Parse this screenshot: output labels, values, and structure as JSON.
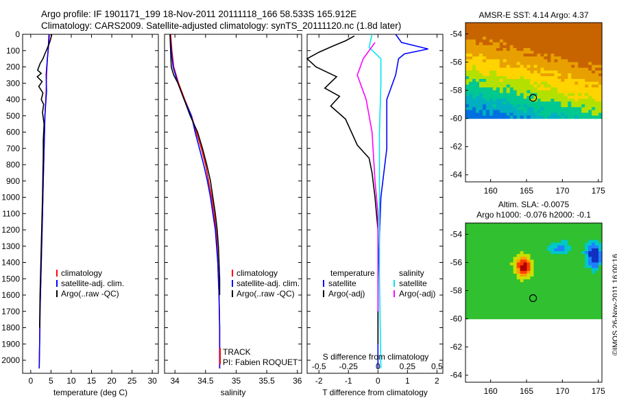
{
  "header": {
    "line1": "Argo profile: IF 1901171_199 18-Nov-2011 20111118_166 58.533S 165.912E",
    "line2": "Climatology: CARS2009. Satellite-adjusted climatology: synTS_20111120.nc (1.8d later)"
  },
  "colors": {
    "climatology": "#ff0000",
    "satellite": "#0000ff",
    "argo": "#000000",
    "cyan": "#00e5ee",
    "magenta": "#ff00ff"
  },
  "chart_data": [
    {
      "type": "line",
      "id": "temperature",
      "xlabel": "temperature (deg C)",
      "ylabel": "",
      "xlim": [
        -2,
        31.5
      ],
      "ylim": [
        2080,
        0
      ],
      "xticks": [
        0,
        5,
        10,
        15,
        20,
        25,
        30
      ],
      "yticks": [
        0,
        100,
        200,
        300,
        400,
        500,
        600,
        700,
        800,
        900,
        1000,
        1100,
        1200,
        1300,
        1400,
        1500,
        1600,
        1700,
        1800,
        1900,
        2000
      ],
      "legend": [
        "climatology",
        "satellite-adj. clim.",
        "Argo(..raw -QC)"
      ],
      "series": [
        {
          "name": "climatology",
          "color": "#ff0000",
          "points": [
            [
              4.6,
              0
            ],
            [
              4.5,
              50
            ],
            [
              4.3,
              100
            ],
            [
              4.1,
              150
            ],
            [
              3.9,
              250
            ],
            [
              3.8,
              350
            ],
            [
              3.5,
              500
            ],
            [
              3.3,
              700
            ],
            [
              3.1,
              900
            ],
            [
              2.9,
              1100
            ],
            [
              2.7,
              1300
            ],
            [
              2.5,
              1500
            ],
            [
              2.3,
              1700
            ],
            [
              2.2,
              1900
            ],
            [
              2.1,
              2050
            ]
          ]
        },
        {
          "name": "satellite-adj. clim.",
          "color": "#0000ff",
          "points": [
            [
              4.5,
              0
            ],
            [
              4.4,
              50
            ],
            [
              4.3,
              100
            ],
            [
              4.1,
              150
            ],
            [
              3.8,
              250
            ],
            [
              3.9,
              350
            ],
            [
              3.5,
              500
            ],
            [
              3.3,
              700
            ],
            [
              3.1,
              900
            ],
            [
              2.9,
              1100
            ],
            [
              2.7,
              1300
            ],
            [
              2.5,
              1500
            ],
            [
              2.3,
              1700
            ],
            [
              2.2,
              1900
            ],
            [
              2.1,
              2050
            ]
          ]
        },
        {
          "name": "Argo(..raw -QC)",
          "color": "#000000",
          "points": [
            [
              5.2,
              0
            ],
            [
              5.0,
              20
            ],
            [
              4.8,
              40
            ],
            [
              4.5,
              60
            ],
            [
              4.0,
              90
            ],
            [
              3.5,
              120
            ],
            [
              3.0,
              150
            ],
            [
              2.3,
              180
            ],
            [
              1.7,
              220
            ],
            [
              2.6,
              240
            ],
            [
              1.6,
              260
            ],
            [
              2.8,
              290
            ],
            [
              2.0,
              320
            ],
            [
              3.0,
              360
            ],
            [
              2.6,
              400
            ],
            [
              3.2,
              430
            ],
            [
              2.9,
              480
            ],
            [
              3.3,
              550
            ],
            [
              3.1,
              650
            ],
            [
              3.1,
              750
            ],
            [
              3.0,
              850
            ],
            [
              2.9,
              1000
            ],
            [
              2.7,
              1200
            ],
            [
              2.5,
              1400
            ],
            [
              2.3,
              1600
            ],
            [
              2.2,
              1800
            ]
          ]
        }
      ]
    },
    {
      "type": "line",
      "id": "salinity",
      "xlabel": "salinity",
      "ylabel": "",
      "xlim": [
        33.83,
        36.07
      ],
      "ylim": [
        2080,
        0
      ],
      "xticks": [
        34,
        34.5,
        35,
        35.5,
        36
      ],
      "legend": [
        "climatology",
        "satellite-adj. clim.",
        "Argo(..raw -QC)"
      ],
      "series": [
        {
          "name": "climatology",
          "color": "#ff0000",
          "points": [
            [
              33.93,
              0
            ],
            [
              33.94,
              50
            ],
            [
              33.95,
              100
            ],
            [
              33.98,
              200
            ],
            [
              34.06,
              300
            ],
            [
              34.16,
              400
            ],
            [
              34.27,
              500
            ],
            [
              34.35,
              600
            ],
            [
              34.43,
              700
            ],
            [
              34.5,
              800
            ],
            [
              34.55,
              900
            ],
            [
              34.6,
              1000
            ],
            [
              34.64,
              1100
            ],
            [
              34.67,
              1200
            ],
            [
              34.69,
              1300
            ],
            [
              34.7,
              1400
            ],
            [
              34.71,
              1500
            ],
            [
              34.72,
              1600
            ],
            [
              34.73,
              1800
            ],
            [
              34.73,
              2050
            ]
          ]
        },
        {
          "name": "satellite-adj. clim.",
          "color": "#0000ff",
          "points": [
            [
              33.92,
              0
            ],
            [
              33.93,
              50
            ],
            [
              33.94,
              100
            ],
            [
              33.97,
              200
            ],
            [
              34.05,
              300
            ],
            [
              34.15,
              400
            ],
            [
              34.27,
              500
            ],
            [
              34.33,
              600
            ],
            [
              34.4,
              700
            ],
            [
              34.47,
              800
            ],
            [
              34.53,
              900
            ],
            [
              34.58,
              1000
            ],
            [
              34.62,
              1100
            ],
            [
              34.66,
              1200
            ],
            [
              34.68,
              1300
            ],
            [
              34.7,
              1400
            ],
            [
              34.71,
              1500
            ],
            [
              34.72,
              1600
            ],
            [
              34.73,
              1800
            ],
            [
              34.73,
              2050
            ]
          ]
        },
        {
          "name": "Argo(..raw -QC)",
          "color": "#000000",
          "points": [
            [
              33.92,
              0
            ],
            [
              33.93,
              100
            ],
            [
              33.94,
              200
            ],
            [
              33.98,
              250
            ],
            [
              34.05,
              300
            ],
            [
              34.15,
              400
            ],
            [
              34.25,
              500
            ],
            [
              34.37,
              600
            ],
            [
              34.45,
              700
            ],
            [
              34.52,
              800
            ],
            [
              34.58,
              900
            ],
            [
              34.62,
              1000
            ],
            [
              34.66,
              1100
            ],
            [
              34.69,
              1200
            ],
            [
              34.71,
              1300
            ],
            [
              34.72,
              1400
            ],
            [
              34.73,
              1500
            ],
            [
              34.73,
              1600
            ]
          ]
        }
      ],
      "annotation": [
        "TRACK",
        "PI: Fabien ROQUET"
      ]
    },
    {
      "type": "line",
      "id": "differences",
      "xlabel": "T difference from climatology",
      "xlabel_top": "S difference from climatology",
      "xlim": [
        -2.4,
        2.2
      ],
      "ylim": [
        2080,
        0
      ],
      "xticks": [
        -2,
        -1,
        0,
        1,
        2
      ],
      "top_ticks": [
        {
          "label": "-0.5",
          "t": -2
        },
        {
          "label": "-0.25",
          "t": -1
        },
        {
          "label": "0",
          "t": 0
        },
        {
          "label": "0.25",
          "t": 1
        },
        {
          "label": "0.5",
          "t": 2
        }
      ],
      "legend_left": {
        "title": "temperature",
        "items": [
          "satellite",
          "Argo(-adj)"
        ]
      },
      "legend_right": {
        "title": "salinity",
        "items": [
          "satellite",
          "Argo(-adj)"
        ]
      },
      "series": [
        {
          "name": "T satellite",
          "color": "#0000ff",
          "points": [
            [
              0.6,
              0
            ],
            [
              0.8,
              50
            ],
            [
              1.7,
              90
            ],
            [
              0.9,
              120
            ],
            [
              0.7,
              150
            ],
            [
              0.6,
              250
            ],
            [
              0.3,
              400
            ],
            [
              0.3,
              700
            ],
            [
              0.1,
              1000
            ],
            [
              0,
              1500
            ],
            [
              0,
              2050
            ]
          ]
        },
        {
          "name": "T Argo(-adj)",
          "color": "#000000",
          "points": [
            [
              -0.8,
              10
            ],
            [
              -1.1,
              40
            ],
            [
              -1.5,
              70
            ],
            [
              -2.0,
              110
            ],
            [
              -2.4,
              150
            ],
            [
              -2.1,
              200
            ],
            [
              -1.4,
              260
            ],
            [
              -1.8,
              330
            ],
            [
              -1.3,
              380
            ],
            [
              -1.6,
              440
            ],
            [
              -1.1,
              520
            ],
            [
              -0.9,
              600
            ],
            [
              -0.7,
              680
            ],
            [
              -0.3,
              760
            ],
            [
              -0.2,
              850
            ],
            [
              -0.1,
              1000
            ],
            [
              0,
              1200
            ],
            [
              0,
              1500
            ],
            [
              0,
              1700
            ],
            [
              0,
              1900
            ]
          ]
        },
        {
          "name": "S satellite",
          "color": "#00e5ee",
          "points": [
            [
              -0.2,
              0
            ],
            [
              -0.3,
              80
            ],
            [
              0.1,
              150
            ],
            [
              0.1,
              300
            ],
            [
              0.05,
              600
            ],
            [
              0.05,
              1000
            ],
            [
              0.05,
              1500
            ],
            [
              0.1,
              2050
            ]
          ]
        },
        {
          "name": "S Argo(-adj)",
          "color": "#ff00ff",
          "points": [
            [
              -0.1,
              50
            ],
            [
              -0.5,
              150
            ],
            [
              -0.7,
              250
            ],
            [
              -0.4,
              400
            ],
            [
              -0.2,
              600
            ],
            [
              -0.1,
              900
            ],
            [
              0,
              1100
            ],
            [
              0,
              1300
            ],
            [
              0,
              1700
            ]
          ]
        }
      ]
    },
    {
      "type": "heatmap",
      "id": "sst_map",
      "title": "AMSR-E SST: 4.14 Argo: 4.37",
      "xlim": [
        156.5,
        175.5
      ],
      "ylim": [
        -64.5,
        -53.2
      ],
      "xticks": [
        160,
        165,
        170,
        175
      ],
      "yticks": [
        -54,
        -56,
        -58,
        -60,
        -62,
        -64
      ],
      "data_extent_lat": [
        -60,
        -53.2
      ],
      "marker": {
        "lon": 165.912,
        "lat": -58.533
      }
    },
    {
      "type": "heatmap",
      "id": "sla_map",
      "title": "Altim. SLA: -0.0075",
      "subtitle": "Argo h1000: -0.076 h2000: -0.1",
      "xlim": [
        156.5,
        175.5
      ],
      "ylim": [
        -64.5,
        -53.2
      ],
      "xticks": [
        160,
        165,
        170,
        175
      ],
      "yticks": [
        -54,
        -56,
        -58,
        -60,
        -62,
        -64
      ],
      "data_extent_lat": [
        -60,
        -53.2
      ],
      "marker": {
        "lon": 165.912,
        "lat": -58.533
      }
    }
  ],
  "footer": {
    "stamp": "©IMOS 26-Nov-2011 16:00:16"
  }
}
